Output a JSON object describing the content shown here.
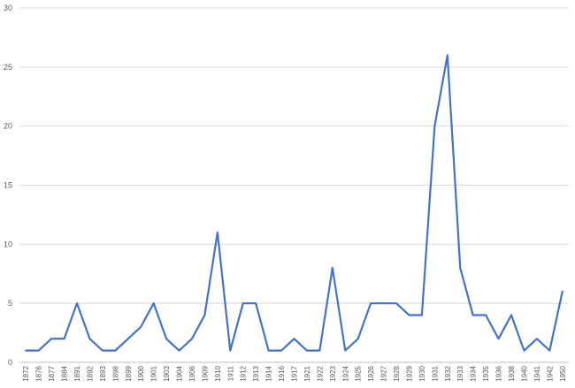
{
  "chart_data": {
    "type": "line",
    "title": "",
    "xlabel": "",
    "ylabel": "",
    "ylim": [
      0,
      30
    ],
    "yticks": [
      0,
      5,
      10,
      15,
      20,
      25,
      30
    ],
    "grid": true,
    "legend": "none",
    "colors": {
      "line": "#4472c4"
    },
    "categories": [
      "1872",
      "1876",
      "1877",
      "1884",
      "1891",
      "1892",
      "1893",
      "1898",
      "1899",
      "1900",
      "1901",
      "1903",
      "1904",
      "1906",
      "1909",
      "1910",
      "1911",
      "1912",
      "1913",
      "1914",
      "1916",
      "1917",
      "1921",
      "1922",
      "1923",
      "1924",
      "1925",
      "1926",
      "1927",
      "1928",
      "1929",
      "1930",
      "1931",
      "1932",
      "1933",
      "1934",
      "1935",
      "1936",
      "1938",
      "1940",
      "1941",
      "1942",
      "1950"
    ],
    "series": [
      {
        "values": [
          1,
          1,
          2,
          2,
          5,
          2,
          1,
          1,
          2,
          3,
          5,
          2,
          1,
          2,
          4,
          11,
          1,
          5,
          5,
          1,
          1,
          2,
          1,
          1,
          8,
          1,
          2,
          5,
          5,
          5,
          4,
          4,
          20,
          26,
          8,
          4,
          4,
          2,
          4,
          1,
          2,
          1,
          6
        ]
      }
    ]
  }
}
